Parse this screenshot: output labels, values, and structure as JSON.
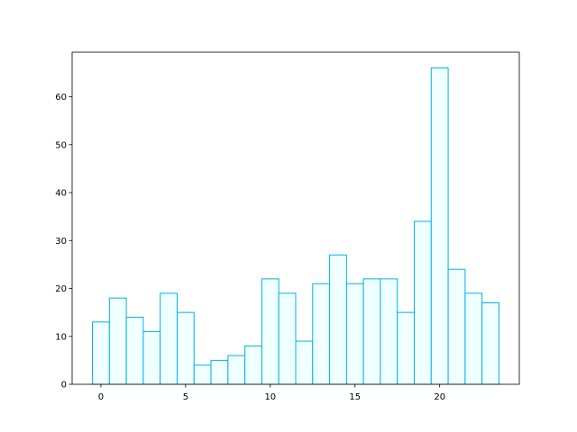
{
  "chart_data": {
    "type": "bar",
    "x": [
      0,
      1,
      2,
      3,
      4,
      5,
      6,
      7,
      8,
      9,
      10,
      11,
      12,
      13,
      14,
      15,
      16,
      17,
      18,
      19,
      20,
      21,
      22,
      23
    ],
    "values": [
      13,
      18,
      14,
      11,
      19,
      15,
      4,
      5,
      6,
      8,
      22,
      19,
      9,
      21,
      27,
      21,
      22,
      22,
      15,
      34,
      66,
      24,
      19,
      17
    ],
    "color": "#f0ffff",
    "edgecolor": "#00b4e4",
    "xlim": [
      -1.7,
      24.7
    ],
    "xticks": [
      0,
      5,
      10,
      15,
      20
    ],
    "ylim": [
      0,
      69.3
    ],
    "yticks": [
      0,
      10,
      20,
      30,
      40,
      50,
      60
    ],
    "grid": false
  }
}
